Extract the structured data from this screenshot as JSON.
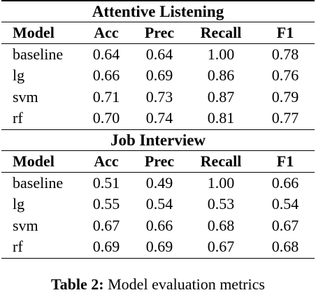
{
  "sections": [
    {
      "title": "Attentive Listening",
      "columns": [
        "Model",
        "Acc",
        "Prec",
        "Recall",
        "F1"
      ],
      "rows": [
        [
          "baseline",
          "0.64",
          "0.64",
          "1.00",
          "0.78"
        ],
        [
          "lg",
          "0.66",
          "0.69",
          "0.86",
          "0.76"
        ],
        [
          "svm",
          "0.71",
          "0.73",
          "0.87",
          "0.79"
        ],
        [
          "rf",
          "0.70",
          "0.74",
          "0.81",
          "0.77"
        ]
      ]
    },
    {
      "title": "Job Interview",
      "columns": [
        "Model",
        "Acc",
        "Prec",
        "Recall",
        "F1"
      ],
      "rows": [
        [
          "baseline",
          "0.51",
          "0.49",
          "1.00",
          "0.66"
        ],
        [
          "lg",
          "0.55",
          "0.54",
          "0.53",
          "0.54"
        ],
        [
          "svm",
          "0.67",
          "0.66",
          "0.68",
          "0.67"
        ],
        [
          "rf",
          "0.69",
          "0.69",
          "0.67",
          "0.68"
        ]
      ]
    }
  ],
  "caption": {
    "label": "Table 2:",
    "text": "Model evaluation metrics"
  }
}
